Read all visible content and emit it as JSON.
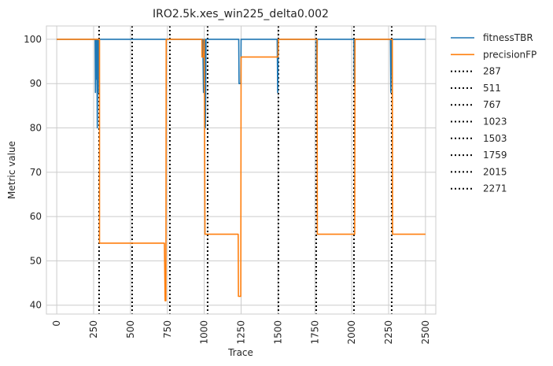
{
  "chart_data": {
    "type": "line",
    "title": "IRO2.5k.xes_win225_delta0.002",
    "xlabel": "Trace",
    "ylabel": "Metric value",
    "xlim": [
      -70,
      2570
    ],
    "ylim": [
      38,
      103
    ],
    "xticks": [
      0,
      250,
      500,
      750,
      1000,
      1250,
      1500,
      1750,
      2000,
      2250,
      2500
    ],
    "yticks": [
      40,
      50,
      60,
      70,
      80,
      90,
      100
    ],
    "grid": true,
    "legend_position": "outside-right",
    "series": [
      {
        "name": "fitnessTBR",
        "color": "#1f77b4",
        "points": [
          [
            0,
            100
          ],
          [
            260,
            100
          ],
          [
            262,
            88
          ],
          [
            265,
            100
          ],
          [
            268,
            91
          ],
          [
            272,
            100
          ],
          [
            275,
            80
          ],
          [
            278,
            100
          ],
          [
            282,
            88
          ],
          [
            285,
            100
          ],
          [
            990,
            100
          ],
          [
            995,
            88
          ],
          [
            998,
            100
          ],
          [
            1002,
            88
          ],
          [
            1005,
            100
          ],
          [
            1008,
            80
          ],
          [
            1012,
            100
          ],
          [
            1234,
            100
          ],
          [
            1236,
            90
          ],
          [
            1248,
            90
          ],
          [
            1250,
            100
          ],
          [
            1495,
            100
          ],
          [
            1498,
            88
          ],
          [
            1502,
            100
          ],
          [
            1760,
            100
          ],
          [
            1763,
            88
          ],
          [
            1767,
            100
          ],
          [
            2015,
            100
          ],
          [
            2018,
            90
          ],
          [
            2022,
            100
          ],
          [
            2262,
            100
          ],
          [
            2265,
            88
          ],
          [
            2270,
            100
          ],
          [
            2500,
            100
          ]
        ]
      },
      {
        "name": "precisionFP",
        "color": "#ff7f0e",
        "points": [
          [
            0,
            100
          ],
          [
            290,
            100
          ],
          [
            290,
            54
          ],
          [
            730,
            54
          ],
          [
            735,
            41
          ],
          [
            740,
            41
          ],
          [
            742,
            100
          ],
          [
            985,
            100
          ],
          [
            985,
            96
          ],
          [
            995,
            96
          ],
          [
            1000,
            100
          ],
          [
            1005,
            56
          ],
          [
            1230,
            56
          ],
          [
            1232,
            42
          ],
          [
            1248,
            42
          ],
          [
            1250,
            96
          ],
          [
            1500,
            96
          ],
          [
            1502,
            100
          ],
          [
            1765,
            100
          ],
          [
            1767,
            56
          ],
          [
            2020,
            56
          ],
          [
            2022,
            100
          ],
          [
            2275,
            100
          ],
          [
            2277,
            56
          ],
          [
            2500,
            56
          ]
        ]
      }
    ],
    "vlines": [
      {
        "name": "287",
        "x": 287,
        "color": "#000000"
      },
      {
        "name": "511",
        "x": 511,
        "color": "#000000"
      },
      {
        "name": "767",
        "x": 767,
        "color": "#000000"
      },
      {
        "name": "1023",
        "x": 1023,
        "color": "#000000"
      },
      {
        "name": "1503",
        "x": 1503,
        "color": "#000000"
      },
      {
        "name": "1759",
        "x": 1759,
        "color": "#000000"
      },
      {
        "name": "2015",
        "x": 2015,
        "color": "#000000"
      },
      {
        "name": "2271",
        "x": 2271,
        "color": "#000000"
      }
    ]
  }
}
